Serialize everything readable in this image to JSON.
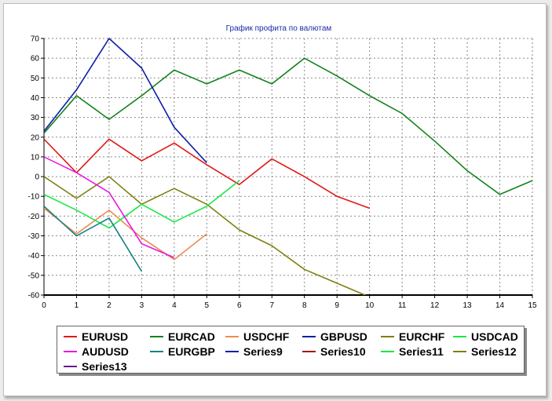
{
  "chart_data": {
    "type": "line",
    "title": "График профита по валютам",
    "xlabel": "",
    "ylabel": "",
    "xlim": [
      0,
      15
    ],
    "ylim": [
      -60,
      70
    ],
    "x_ticks": [
      0,
      1,
      2,
      3,
      4,
      5,
      6,
      7,
      8,
      9,
      10,
      11,
      12,
      13,
      14,
      15
    ],
    "y_ticks": [
      70,
      60,
      50,
      40,
      30,
      20,
      10,
      0,
      -10,
      -20,
      -30,
      -40,
      -50,
      -60
    ],
    "grid": true,
    "legend_position": "bottom",
    "series": [
      {
        "name": "EURUSD",
        "color": "#e01818",
        "x": [
          0,
          1,
          2,
          3,
          4,
          5,
          6,
          7,
          8,
          9,
          10
        ],
        "values": [
          19,
          2,
          19,
          8,
          17,
          6,
          -4,
          9,
          0,
          -10,
          -16
        ]
      },
      {
        "name": "EURCAD",
        "color": "#14821c",
        "x": [
          0,
          1,
          2,
          3,
          4,
          5,
          6,
          7,
          8,
          9,
          10,
          11,
          12,
          13,
          14,
          15
        ],
        "values": [
          22,
          41,
          29,
          41,
          54,
          47,
          54,
          47,
          60,
          51,
          41,
          32,
          18,
          3,
          -9,
          -2
        ]
      },
      {
        "name": "USDCHF",
        "color": "#ef8a4e",
        "x": [
          0,
          1,
          2,
          3,
          4,
          5
        ],
        "values": [
          -16,
          -29,
          -17,
          -31,
          -42,
          -29
        ]
      },
      {
        "name": "GBPUSD",
        "color": "#101ea8",
        "x": [
          0,
          1,
          2,
          3,
          4,
          5
        ],
        "values": [
          23,
          44,
          70,
          55,
          25,
          7
        ]
      },
      {
        "name": "EURCHF",
        "color": "#7e8010",
        "x": [
          0,
          1,
          2,
          3,
          4,
          5,
          6,
          7,
          8,
          9,
          10
        ],
        "values": [
          0,
          -11,
          0,
          -14,
          -6,
          -14,
          -27,
          -35,
          -47,
          -54,
          -61
        ]
      },
      {
        "name": "USDCAD",
        "color": "#18e848",
        "x": [
          0,
          1,
          2,
          3,
          4,
          5,
          6
        ],
        "values": [
          -9,
          -17,
          -26,
          -14,
          -23,
          -15,
          -2
        ]
      },
      {
        "name": "AUDUSD",
        "color": "#e818e0",
        "x": [
          0,
          1,
          2,
          3,
          4
        ],
        "values": [
          10,
          2,
          -8,
          -34,
          -41
        ]
      },
      {
        "name": "EURGBP",
        "color": "#148282",
        "x": [
          0,
          1,
          2,
          3
        ],
        "values": [
          -15,
          -30,
          -21,
          -48
        ]
      },
      {
        "name": "Series9",
        "color": "#101ea8",
        "x": [],
        "values": []
      },
      {
        "name": "Series10",
        "color": "#a81414",
        "x": [],
        "values": []
      },
      {
        "name": "Series11",
        "color": "#18e848",
        "x": [],
        "values": []
      },
      {
        "name": "Series12",
        "color": "#7e8010",
        "x": [],
        "values": []
      },
      {
        "name": "Series13",
        "color": "#6a1a8a",
        "x": [],
        "values": []
      }
    ]
  }
}
